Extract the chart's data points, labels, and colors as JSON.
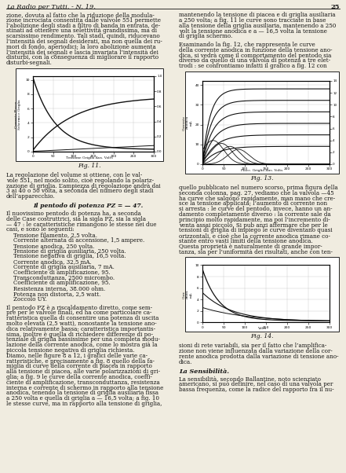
{
  "page_title": "La Radio per Tutti. - N. 19.",
  "page_number": "25",
  "background_color": "#f0ece0",
  "text_color": "#111111",
  "fig11_caption": "Fig. 11.",
  "fig13_caption": "Fig. 13.",
  "fig14_caption": "Fig. 14.",
  "section_heading": "Il pentodo di potenza PZ = — 47.",
  "la_sensibilita": "La Sensibilità.",
  "col1_text_lines": [
    "zione, dovuta al fatto che la riduzione della modula-",
    "zione incrociata consentita dalle valvole 551 permette",
    "l’abolizione degli stadi a filtro di banda in entrata, de-",
    "stinati ad ottenere una selettività grandissima, ma di",
    "scarsissimo rendimento. Tali stadi, quindi, riducevano",
    "l’intensità dei segnali desiderati, ma non quella dei ru-",
    "mori di fondo, aperiodici; la loro abolizione aumenta",
    "l’intensità dei segnali e lascia invariata l’intensità dei",
    "disturbi, con la conseguenza di migliorare il rapporto",
    "disturbi-segnali."
  ],
  "col1_text2_lines": [
    "La regolazione del volume si ottiene, con le val-",
    "vole 551, nel modo solito, cioè regolando la polariz-",
    "zazione di griglia. L’ampiezza di regolazione andrà dai",
    "3 ai 40 o 50 volta, a seconda del numero degli stadi",
    "dell’apparecchio."
  ],
  "col1_text3_lines": [
    "Il nuovissimo pentodo di potenza ha, a seconda",
    "delle Case costruttrici, sia la sigla PZ, sia la sigla",
    "— 47 : le caratteristiche rimangono le stesse nei due",
    "casi, e sono le seguenti:",
    "    Tensione filamento, 2,5 volta.",
    "    Corrente alternata di accensione, 1,5 ampere.",
    "    Tensione anodica, 250 volta.",
    "    Tensione di griglia ausiliaria, 250 volta.",
    "    Tensione negativa di griglia, 16,5 volta.",
    "    Corrente anodica, 32,5 mA.",
    "    Corrente di griglia ausiliaria, 7 mA.",
    "    Coefficiente di amplificazione, 95.",
    "    Transconduttanza, 2500 micrombo.",
    "    Coefficiente di amplificazione, 95.",
    "    Resistenza interna, 38.000 ohm.",
    "    Potenza non distorta, 2,5 watt.",
    "    Zoccolo UY."
  ],
  "col1_text4_lines": [
    "Il pentodo PZ è a riscaldamento diretto, come sem-",
    "pre per le valvole finali, ed ha come particolare ca-",
    "ratteristica quella di consentire una potenza di uscita",
    "molto elevata (2,5 watt), nonostante la tensione ano-",
    "dica relativamente bassa; caratteristica importantis-",
    "sima, inoltre è quella di richiedere differenze di po-",
    "tenziale di griglia bassissime per una completa modu-",
    "lazione della corrente anodica, come lo mostra già la",
    "piccola tensione negativa di griglia richiesta.",
    "Diamo, nelle figure 8 a 12, i grafici delle varie ca-",
    "ratteristiche, e precisamente a fig. 8 quello della fa-",
    "miglia di curve della corrente di piacea in rapporto",
    "alla tensione di piacea, alle varie polarizzazioni di gri-",
    "glia; a fig. 9 le curve della corrente anodica, coeffi-",
    "ciente di amplificazione, transconduttanza, resistenza",
    "interna e corrente di schermo in rapporto alla tensione",
    "anodica, tenendo la tensione di griglia ausiliaria fissa",
    "a 250 volta e quella di griglia a — 16,5 volta; a fig. 10",
    "le stesse curve, ma in rapporto alla tensione di griglia,"
  ],
  "col2_text1_lines": [
    "mantenendo la tensione di piacea e di griglia ausiliaria",
    "a 250 volta; a fig. 11 le curve sono tracciate in base",
    "alla tensione della griglia ausiliaria, mantenendo a 250",
    "volt la tensione anodica e a — 16,5 volta la tensione",
    "di griglia schermo."
  ],
  "col2_text2_lines": [
    "Esaminando la fig. 12, che rappresenta le curve",
    "della corrente anodica in funzione della tensione ano-",
    "dica, si vedrà come il comportamento del pentodo sia",
    "diverso da quello di una valvola di potenza a tre elet-",
    "trodi : se confrontiamo infatti il grafico a fig. 12 con"
  ],
  "col2_text3_lines": [
    "quello pubblicato nel numero scorso, prima figura della",
    "seconda colonna, pag. 27, vediamo che la valvola —45",
    "ha curve che salgono rapidamente, man mano che cre-",
    "sce la tensione applicata; l’aumento di corrente non",
    "si arresta : le curve del pentodo, invece, hanno un an-",
    "damento completamente diverso : la corrente sale da",
    "principio molto rapidamente, ma poi l’incremento di-",
    "venta assai piccolo. Si pub anzi affermare che per le",
    "tensioni di griglia di impiego le curve diventano quasi",
    "orizzontali, e cioè che la corrente anodica rimane co-",
    "stante entro vasti limiti della tensione anodica.",
    "Questa proprietà è naturalmente di grande impor-",
    "tanza, sia per l’uniformità dei risultati, anche con ten-"
  ],
  "col2_text4_lines": [
    "sioni di rete variabili, sia per il fatto che l’amplifica-",
    "zione non viene influenzata dalla variazione della cor-",
    "rente anodica prodotta dalla variazione di tensione ano-",
    "dica."
  ],
  "col2_text5_lines": [
    "La sensibilità, secondo Ballantine, noto scienziato",
    "americano, si può definire, nel caso di una valvola per",
    "bassa frequenza, come la radice del rapporto fra il nu-"
  ]
}
